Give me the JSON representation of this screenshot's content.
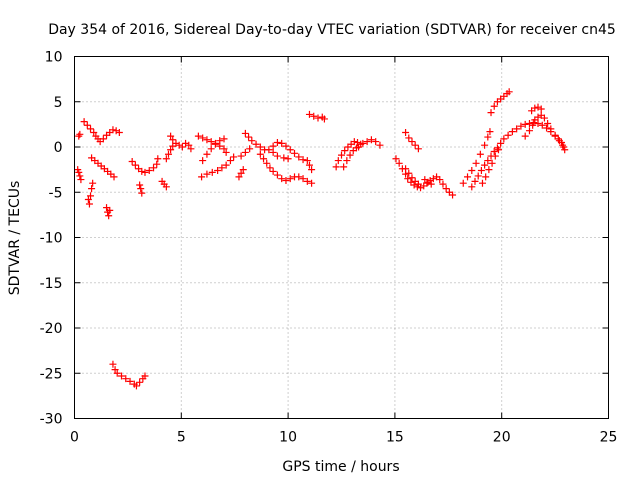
{
  "chart_data": {
    "type": "scatter",
    "title": "Day 354 of 2016, Sidereal Day-to-day VTEC variation (SDTVAR) for receiver cn45",
    "xlabel": "GPS time / hours",
    "ylabel": "SDTVAR / TECUs",
    "xlim": [
      0,
      25
    ],
    "ylim": [
      -30,
      10
    ],
    "x_ticks": [
      0,
      5,
      10,
      15,
      20,
      25
    ],
    "x_tick_labels": [
      "0",
      "5",
      "10",
      "15",
      "20",
      "25"
    ],
    "y_ticks": [
      10,
      5,
      0,
      -5,
      -10,
      -15,
      -20,
      -25,
      -30
    ],
    "y_tick_labels": [
      "10",
      "5",
      "0",
      "-5",
      "-10",
      "-15",
      "-20",
      "-25",
      "-30"
    ],
    "grid": true,
    "marker": "+",
    "color": "#ff0000",
    "series": [
      {
        "name": "s1",
        "points": [
          [
            0.15,
            -2.5
          ],
          [
            0.2,
            -2.8
          ],
          [
            0.25,
            -3.2
          ],
          [
            0.3,
            -3.6
          ]
        ]
      },
      {
        "name": "s2",
        "points": [
          [
            0.2,
            1.2
          ],
          [
            0.25,
            1.4
          ]
        ]
      },
      {
        "name": "s3",
        "points": [
          [
            0.45,
            2.8
          ],
          [
            0.6,
            2.4
          ],
          [
            0.75,
            2.0
          ],
          [
            0.9,
            1.6
          ],
          [
            1.0,
            1.2
          ],
          [
            1.1,
            0.9
          ],
          [
            1.2,
            0.6
          ],
          [
            1.35,
            0.9
          ],
          [
            1.5,
            1.3
          ],
          [
            1.65,
            1.6
          ],
          [
            1.8,
            1.9
          ],
          [
            1.95,
            1.8
          ],
          [
            2.1,
            1.6
          ]
        ]
      },
      {
        "name": "s4",
        "points": [
          [
            0.65,
            -5.8
          ],
          [
            0.7,
            -6.3
          ],
          [
            0.75,
            -5.4
          ],
          [
            0.8,
            -4.6
          ],
          [
            0.85,
            -4.0
          ]
        ]
      },
      {
        "name": "s5",
        "points": [
          [
            0.8,
            -1.2
          ],
          [
            0.95,
            -1.5
          ],
          [
            1.1,
            -1.8
          ],
          [
            1.25,
            -2.1
          ],
          [
            1.4,
            -2.4
          ],
          [
            1.55,
            -2.7
          ],
          [
            1.7,
            -3.0
          ],
          [
            1.85,
            -3.3
          ]
        ]
      },
      {
        "name": "s6",
        "points": [
          [
            1.5,
            -6.7
          ],
          [
            1.55,
            -7.2
          ],
          [
            1.6,
            -7.6
          ],
          [
            1.65,
            -7.0
          ]
        ]
      },
      {
        "name": "s7",
        "points": [
          [
            1.8,
            -24.0
          ],
          [
            1.9,
            -24.6
          ],
          [
            2.0,
            -25.0
          ],
          [
            2.2,
            -25.3
          ],
          [
            2.4,
            -25.6
          ],
          [
            2.6,
            -25.9
          ],
          [
            2.8,
            -26.2
          ],
          [
            2.9,
            -26.4
          ],
          [
            3.05,
            -26.0
          ],
          [
            3.2,
            -25.6
          ],
          [
            3.3,
            -25.3
          ]
        ]
      },
      {
        "name": "s8",
        "points": [
          [
            2.7,
            -1.6
          ],
          [
            2.85,
            -2.0
          ],
          [
            3.0,
            -2.4
          ],
          [
            3.15,
            -2.7
          ],
          [
            3.3,
            -2.8
          ],
          [
            3.5,
            -2.6
          ],
          [
            3.7,
            -2.3
          ],
          [
            3.85,
            -1.9
          ],
          [
            3.9,
            -1.3
          ]
        ]
      },
      {
        "name": "s9",
        "points": [
          [
            3.05,
            -4.2
          ],
          [
            3.1,
            -4.6
          ],
          [
            3.15,
            -5.1
          ]
        ]
      },
      {
        "name": "s10",
        "points": [
          [
            4.1,
            -3.8
          ],
          [
            4.2,
            -4.1
          ],
          [
            4.3,
            -4.4
          ]
        ]
      },
      {
        "name": "s11",
        "points": [
          [
            4.3,
            -1.3
          ],
          [
            4.4,
            -0.8
          ],
          [
            4.5,
            -0.3
          ],
          [
            4.6,
            0.1
          ],
          [
            4.75,
            0.4
          ],
          [
            4.9,
            0.2
          ],
          [
            5.05,
            0.0
          ],
          [
            5.2,
            0.4
          ],
          [
            5.35,
            0.2
          ],
          [
            5.45,
            -0.2
          ]
        ]
      },
      {
        "name": "s12",
        "points": [
          [
            4.5,
            1.2
          ],
          [
            4.6,
            0.8
          ]
        ]
      },
      {
        "name": "s13",
        "points": [
          [
            5.8,
            1.2
          ],
          [
            6.0,
            1.0
          ],
          [
            6.2,
            0.8
          ],
          [
            6.4,
            0.6
          ],
          [
            6.6,
            0.4
          ],
          [
            6.8,
            0.1
          ],
          [
            7.0,
            -0.2
          ],
          [
            7.1,
            -0.6
          ]
        ]
      },
      {
        "name": "s14",
        "points": [
          [
            5.95,
            -3.3
          ],
          [
            6.2,
            -3.0
          ],
          [
            6.45,
            -2.8
          ],
          [
            6.7,
            -2.6
          ],
          [
            6.9,
            -2.3
          ],
          [
            7.1,
            -2.0
          ],
          [
            7.3,
            -1.5
          ],
          [
            7.45,
            -1.1
          ]
        ]
      },
      {
        "name": "s15",
        "points": [
          [
            6.0,
            -1.5
          ],
          [
            6.2,
            -0.8
          ],
          [
            6.4,
            -0.2
          ],
          [
            6.6,
            0.3
          ],
          [
            6.8,
            0.7
          ],
          [
            7.0,
            0.9
          ]
        ]
      },
      {
        "name": "s16",
        "points": [
          [
            7.7,
            -3.3
          ],
          [
            7.8,
            -2.9
          ],
          [
            7.9,
            -2.5
          ]
        ]
      },
      {
        "name": "s17",
        "points": [
          [
            7.8,
            -1.0
          ],
          [
            8.0,
            -0.6
          ],
          [
            8.2,
            -0.2
          ]
        ]
      },
      {
        "name": "s18",
        "points": [
          [
            8.0,
            1.5
          ],
          [
            8.15,
            1.1
          ],
          [
            8.3,
            0.7
          ],
          [
            8.5,
            0.3
          ],
          [
            8.7,
            0.0
          ],
          [
            8.9,
            -0.3
          ],
          [
            9.1,
            -0.3
          ],
          [
            9.3,
            0.1
          ],
          [
            9.5,
            0.5
          ],
          [
            9.7,
            0.4
          ],
          [
            9.9,
            0.1
          ],
          [
            10.1,
            -0.3
          ],
          [
            10.3,
            -0.7
          ],
          [
            10.5,
            -1.1
          ],
          [
            10.7,
            -1.4
          ]
        ]
      },
      {
        "name": "s19",
        "points": [
          [
            8.7,
            -0.8
          ],
          [
            8.85,
            -1.3
          ],
          [
            9.0,
            -1.8
          ],
          [
            9.15,
            -2.3
          ],
          [
            9.3,
            -2.7
          ],
          [
            9.5,
            -3.1
          ],
          [
            9.7,
            -3.5
          ],
          [
            9.9,
            -3.7
          ],
          [
            10.1,
            -3.5
          ],
          [
            10.3,
            -3.3
          ],
          [
            10.5,
            -3.3
          ],
          [
            10.7,
            -3.5
          ],
          [
            10.9,
            -3.8
          ],
          [
            11.1,
            -4.0
          ]
        ]
      },
      {
        "name": "s20",
        "points": [
          [
            9.3,
            -0.6
          ],
          [
            9.5,
            -1.0
          ],
          [
            9.8,
            -1.2
          ],
          [
            10.0,
            -1.3
          ]
        ]
      },
      {
        "name": "s21",
        "points": [
          [
            10.9,
            -1.5
          ],
          [
            11.0,
            -2.0
          ],
          [
            11.1,
            -2.5
          ]
        ]
      },
      {
        "name": "s22",
        "points": [
          [
            11.0,
            3.6
          ],
          [
            11.2,
            3.4
          ],
          [
            11.4,
            3.2
          ],
          [
            11.6,
            3.3
          ],
          [
            11.7,
            3.1
          ]
        ]
      },
      {
        "name": "s23",
        "points": [
          [
            12.25,
            -2.2
          ],
          [
            12.35,
            -1.5
          ],
          [
            12.5,
            -0.9
          ],
          [
            12.65,
            -0.4
          ],
          [
            12.8,
            0.0
          ],
          [
            12.95,
            0.3
          ],
          [
            13.1,
            0.6
          ],
          [
            13.25,
            0.5
          ],
          [
            13.4,
            0.3
          ]
        ]
      },
      {
        "name": "s24",
        "points": [
          [
            12.6,
            -2.2
          ],
          [
            12.75,
            -1.5
          ],
          [
            12.9,
            -0.9
          ],
          [
            13.05,
            -0.4
          ],
          [
            13.2,
            -0.1
          ]
        ]
      },
      {
        "name": "s25",
        "points": [
          [
            13.3,
            0.0
          ],
          [
            13.5,
            0.4
          ],
          [
            13.7,
            0.6
          ],
          [
            13.9,
            0.8
          ],
          [
            14.1,
            0.6
          ],
          [
            14.3,
            0.2
          ]
        ]
      },
      {
        "name": "s26",
        "points": [
          [
            15.05,
            -1.3
          ],
          [
            15.2,
            -1.8
          ],
          [
            15.35,
            -2.4
          ],
          [
            15.5,
            -3.0
          ],
          [
            15.6,
            -3.5
          ],
          [
            15.75,
            -3.9
          ],
          [
            15.9,
            -4.2
          ],
          [
            16.05,
            -4.4
          ],
          [
            16.2,
            -4.5
          ],
          [
            16.35,
            -4.3
          ],
          [
            16.5,
            -4.0
          ],
          [
            16.65,
            -3.7
          ],
          [
            16.8,
            -3.5
          ],
          [
            16.95,
            -3.3
          ],
          [
            17.1,
            -3.6
          ],
          [
            17.25,
            -4.1
          ],
          [
            17.4,
            -4.6
          ],
          [
            17.55,
            -5.0
          ],
          [
            17.7,
            -5.3
          ]
        ]
      },
      {
        "name": "s27",
        "points": [
          [
            15.5,
            -2.4
          ],
          [
            15.65,
            -2.9
          ],
          [
            15.8,
            -3.4
          ],
          [
            15.95,
            -3.8
          ],
          [
            16.1,
            -4.1
          ]
        ]
      },
      {
        "name": "s28",
        "points": [
          [
            15.5,
            1.6
          ],
          [
            15.65,
            1.0
          ],
          [
            15.8,
            0.6
          ],
          [
            15.95,
            0.2
          ],
          [
            16.1,
            -0.2
          ]
        ]
      },
      {
        "name": "s29",
        "points": [
          [
            16.4,
            -3.6
          ],
          [
            16.55,
            -3.9
          ],
          [
            16.7,
            -4.1
          ]
        ]
      },
      {
        "name": "s30",
        "points": [
          [
            18.2,
            -4.0
          ],
          [
            18.4,
            -3.3
          ],
          [
            18.6,
            -2.6
          ],
          [
            18.8,
            -1.8
          ],
          [
            19.0,
            -0.8
          ],
          [
            19.2,
            0.2
          ],
          [
            19.35,
            1.1
          ],
          [
            19.45,
            1.7
          ]
        ]
      },
      {
        "name": "s31",
        "points": [
          [
            18.6,
            -4.4
          ],
          [
            18.75,
            -3.8
          ],
          [
            18.9,
            -3.2
          ],
          [
            19.05,
            -2.6
          ],
          [
            19.2,
            -2.0
          ],
          [
            19.35,
            -1.5
          ],
          [
            19.5,
            -1.0
          ],
          [
            19.65,
            -0.5
          ],
          [
            19.8,
            -0.1
          ],
          [
            19.95,
            0.4
          ],
          [
            20.1,
            0.9
          ],
          [
            20.3,
            1.3
          ],
          [
            20.5,
            1.7
          ],
          [
            20.7,
            2.0
          ],
          [
            20.9,
            2.3
          ],
          [
            21.1,
            2.5
          ],
          [
            21.3,
            2.6
          ],
          [
            21.5,
            2.7
          ],
          [
            21.7,
            2.6
          ],
          [
            21.9,
            2.4
          ],
          [
            22.1,
            2.1
          ],
          [
            22.3,
            1.7
          ],
          [
            22.5,
            1.2
          ],
          [
            22.7,
            0.7
          ],
          [
            22.85,
            0.2
          ],
          [
            22.95,
            -0.3
          ]
        ]
      },
      {
        "name": "s32",
        "points": [
          [
            19.1,
            -4.0
          ],
          [
            19.25,
            -3.3
          ],
          [
            19.4,
            -2.5
          ],
          [
            19.55,
            -1.8
          ],
          [
            19.7,
            -1.0
          ],
          [
            19.85,
            -0.3
          ]
        ]
      },
      {
        "name": "s33",
        "points": [
          [
            19.5,
            3.8
          ],
          [
            19.65,
            4.5
          ],
          [
            19.8,
            5.0
          ],
          [
            19.95,
            5.3
          ],
          [
            20.1,
            5.6
          ],
          [
            20.25,
            5.9
          ],
          [
            20.35,
            6.1
          ]
        ]
      },
      {
        "name": "s34",
        "points": [
          [
            21.1,
            1.2
          ],
          [
            21.3,
            1.8
          ],
          [
            21.45,
            2.4
          ],
          [
            21.55,
            3.0
          ],
          [
            21.7,
            3.3
          ],
          [
            21.85,
            3.5
          ],
          [
            22.0,
            3.2
          ],
          [
            22.15,
            2.6
          ],
          [
            22.3,
            2.0
          ]
        ]
      },
      {
        "name": "s35",
        "points": [
          [
            21.4,
            4.0
          ],
          [
            21.55,
            4.3
          ],
          [
            21.7,
            4.4
          ],
          [
            21.85,
            4.2
          ]
        ]
      },
      {
        "name": "s36",
        "points": [
          [
            22.5,
            1.3
          ],
          [
            22.65,
            0.9
          ],
          [
            22.8,
            0.5
          ],
          [
            22.9,
            0.0
          ]
        ]
      }
    ]
  }
}
